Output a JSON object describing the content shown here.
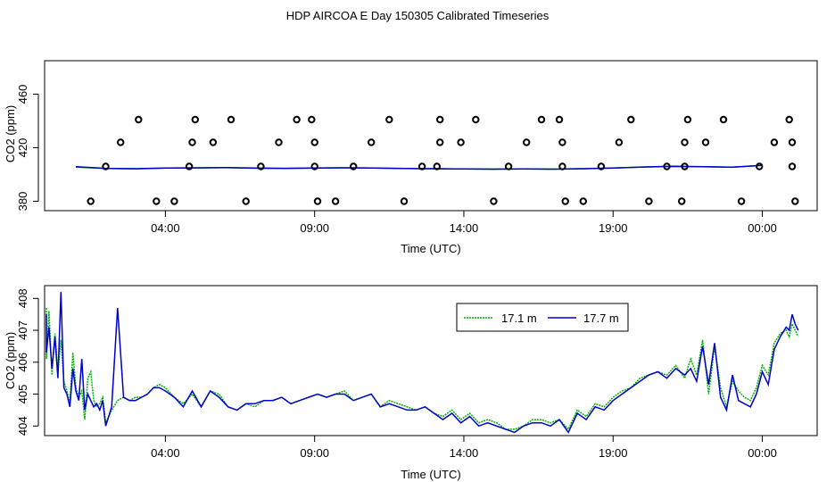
{
  "title": "HDP AIRCOA E  Day 150305  Calibrated Timeseries",
  "colors": {
    "green": "#00b000",
    "blue": "#0000cc",
    "axis": "#000000"
  },
  "chart_data": [
    {
      "type": "line",
      "panel": "top",
      "title": "",
      "xlabel": "Time (UTC)",
      "ylabel": "CO2 (ppm)",
      "xlim": [
        0,
        24
      ],
      "ylim": [
        373,
        485
      ],
      "xticks": [
        3,
        8,
        13,
        18,
        23
      ],
      "xtick_labels": [
        "04:00",
        "09:00",
        "14:00",
        "19:00",
        "00:00"
      ],
      "yticks": [
        380,
        420,
        460
      ],
      "ytick_labels": [
        "380",
        "420",
        "460"
      ],
      "series": [
        {
          "name": "17.1 m",
          "color": "#00b000",
          "x": [
            0,
            1,
            2,
            3,
            4,
            5,
            6,
            7,
            8,
            9,
            10,
            11,
            12,
            13,
            14,
            15,
            16,
            17,
            18,
            19,
            20,
            21,
            22,
            23
          ],
          "values": [
            405.5,
            404.5,
            404.2,
            404.8,
            404.9,
            405.1,
            404.7,
            404.6,
            404.9,
            405,
            404.8,
            404.5,
            404.3,
            404.1,
            404,
            404.1,
            404,
            404.3,
            404.8,
            405.6,
            406,
            405.8,
            405.4,
            406.8
          ]
        },
        {
          "name": "17.7 m",
          "color": "#0000cc",
          "x": [
            0,
            1,
            2,
            3,
            4,
            5,
            6,
            7,
            8,
            9,
            10,
            11,
            12,
            13,
            14,
            15,
            16,
            17,
            18,
            19,
            20,
            21,
            22,
            23
          ],
          "values": [
            405.8,
            404.6,
            404.3,
            404.9,
            405,
            405.2,
            404.8,
            404.6,
            404.9,
            405,
            404.8,
            404.5,
            404.3,
            404.1,
            404,
            404.1,
            404,
            404.3,
            404.8,
            405.6,
            406.1,
            405.9,
            405.5,
            406.9
          ]
        }
      ],
      "calibration_points": [
        [
          0.5,
          380
        ],
        [
          1.0,
          406
        ],
        [
          1.5,
          424
        ],
        [
          2.1,
          441
        ],
        [
          2.7,
          380
        ],
        [
          3.3,
          380
        ],
        [
          3.8,
          406
        ],
        [
          3.9,
          424
        ],
        [
          4.0,
          441
        ],
        [
          4.6,
          424
        ],
        [
          5.2,
          441
        ],
        [
          5.7,
          380
        ],
        [
          6.2,
          406
        ],
        [
          6.8,
          424
        ],
        [
          7.4,
          441
        ],
        [
          7.9,
          441
        ],
        [
          8.0,
          424
        ],
        [
          8.0,
          406
        ],
        [
          8.1,
          380
        ],
        [
          8.7,
          380
        ],
        [
          9.3,
          406
        ],
        [
          9.9,
          424
        ],
        [
          10.5,
          441
        ],
        [
          11.0,
          380
        ],
        [
          11.6,
          406
        ],
        [
          12.1,
          406
        ],
        [
          12.2,
          424
        ],
        [
          12.2,
          441
        ],
        [
          12.9,
          424
        ],
        [
          13.4,
          441
        ],
        [
          14.0,
          380
        ],
        [
          14.5,
          406
        ],
        [
          15.1,
          424
        ],
        [
          15.6,
          441
        ],
        [
          16.2,
          441
        ],
        [
          16.3,
          424
        ],
        [
          16.3,
          406
        ],
        [
          16.4,
          380
        ],
        [
          17.0,
          380
        ],
        [
          17.6,
          406
        ],
        [
          18.2,
          424
        ],
        [
          18.6,
          441
        ],
        [
          19.2,
          380
        ],
        [
          19.8,
          406
        ],
        [
          20.3,
          380
        ],
        [
          20.4,
          406
        ],
        [
          20.4,
          424
        ],
        [
          20.5,
          441
        ],
        [
          21.1,
          424
        ],
        [
          21.7,
          441
        ],
        [
          22.3,
          380
        ],
        [
          22.9,
          406
        ],
        [
          23.4,
          424
        ],
        [
          23.9,
          441
        ],
        [
          24.0,
          424
        ],
        [
          24.0,
          406
        ],
        [
          24.1,
          380
        ]
      ]
    },
    {
      "type": "line",
      "panel": "bottom",
      "title": "",
      "xlabel": "Time (UTC)",
      "ylabel": "CO2 (ppm)",
      "xlim": [
        0,
        24
      ],
      "ylim": [
        403.7,
        408.4
      ],
      "xticks": [
        3,
        8,
        13,
        18,
        23
      ],
      "xtick_labels": [
        "04:00",
        "09:00",
        "14:00",
        "19:00",
        "00:00"
      ],
      "yticks": [
        404,
        405,
        406,
        407,
        408
      ],
      "ytick_labels": [
        "404",
        "405",
        "406",
        "407",
        "408"
      ],
      "legend": {
        "position": "top-right",
        "entries": [
          "17.1 m",
          "17.7 m"
        ]
      },
      "series": [
        {
          "name": "17.1 m",
          "color": "#00b000",
          "dash": "2,1",
          "x": [
            -1.2,
            -1.1,
            -1.0,
            -0.9,
            -0.8,
            -0.7,
            -0.6,
            -0.5,
            -0.4,
            -0.3,
            -0.2,
            -0.1,
            0.0,
            0.1,
            0.2,
            0.3,
            0.4,
            0.5,
            0.6,
            0.7,
            0.8,
            0.9,
            1.0,
            1.2,
            1.4,
            1.6,
            1.8,
            2.0,
            2.2,
            2.4,
            2.6,
            2.8,
            3.0,
            3.3,
            3.6,
            3.9,
            4.2,
            4.5,
            4.8,
            5.1,
            5.4,
            5.7,
            6.0,
            6.3,
            6.6,
            6.9,
            7.2,
            7.5,
            7.8,
            8.1,
            8.4,
            8.7,
            9.0,
            9.3,
            9.6,
            9.9,
            10.2,
            10.5,
            10.8,
            11.1,
            11.4,
            11.7,
            12.0,
            12.3,
            12.6,
            12.9,
            13.2,
            13.5,
            13.8,
            14.1,
            14.4,
            14.7,
            15.0,
            15.3,
            15.6,
            15.9,
            16.2,
            16.5,
            16.8,
            17.1,
            17.4,
            17.7,
            18.0,
            18.3,
            18.6,
            18.9,
            19.2,
            19.5,
            19.8,
            20.1,
            20.4,
            20.6,
            20.8,
            21.0,
            21.2,
            21.4,
            21.6,
            21.8,
            22.0,
            22.2,
            22.4,
            22.6,
            22.8,
            23.0,
            23.2,
            23.4,
            23.6,
            23.8,
            23.9,
            24.0,
            24.1,
            24.2
          ],
          "values": [
            407.7,
            407.0,
            406.1,
            407.6,
            405.6,
            406.9,
            405.7,
            406.7,
            405.4,
            405.1,
            404.7,
            406.3,
            405.2,
            404.9,
            405.1,
            404.2,
            405.5,
            405.7,
            404.8,
            404.6,
            404.7,
            404.9,
            404.1,
            404.5,
            404.8,
            404.9,
            404.8,
            404.9,
            404.9,
            405.0,
            405.2,
            405.3,
            405.2,
            404.9,
            404.7,
            405.0,
            404.6,
            405.1,
            405.0,
            404.6,
            404.5,
            404.7,
            404.6,
            404.8,
            404.8,
            404.9,
            404.7,
            404.8,
            404.9,
            405.0,
            404.9,
            405.0,
            405.1,
            404.8,
            404.9,
            405.0,
            404.6,
            404.8,
            404.7,
            404.6,
            404.5,
            404.6,
            404.4,
            404.3,
            404.5,
            404.2,
            404.4,
            404.1,
            404.2,
            404.1,
            403.9,
            403.9,
            404.0,
            404.2,
            404.2,
            404.1,
            404.2,
            403.9,
            404.5,
            404.3,
            404.7,
            404.6,
            404.9,
            405.1,
            405.2,
            405.5,
            405.6,
            405.7,
            405.6,
            405.9,
            405.5,
            406.1,
            405.6,
            406.7,
            405.0,
            406.5,
            405.2,
            404.6,
            405.4,
            405.1,
            404.9,
            404.8,
            405.2,
            405.9,
            405.6,
            406.6,
            406.9,
            407.0,
            406.8,
            407.2,
            407.0,
            406.8
          ]
        },
        {
          "name": "17.7 m",
          "color": "#0000cc",
          "x": [
            -1.2,
            -1.1,
            -1.0,
            -0.9,
            -0.8,
            -0.7,
            -0.6,
            -0.5,
            -0.4,
            -0.3,
            -0.2,
            -0.1,
            0.0,
            0.1,
            0.2,
            0.3,
            0.4,
            0.5,
            0.6,
            0.7,
            0.8,
            0.9,
            1.0,
            1.2,
            1.4,
            1.6,
            1.8,
            2.0,
            2.2,
            2.4,
            2.6,
            2.8,
            3.0,
            3.3,
            3.6,
            3.9,
            4.2,
            4.5,
            4.8,
            5.1,
            5.4,
            5.7,
            6.0,
            6.3,
            6.6,
            6.9,
            7.2,
            7.5,
            7.8,
            8.1,
            8.4,
            8.7,
            9.0,
            9.3,
            9.6,
            9.9,
            10.2,
            10.5,
            10.8,
            11.1,
            11.4,
            11.7,
            12.0,
            12.3,
            12.6,
            12.9,
            13.2,
            13.5,
            13.8,
            14.1,
            14.4,
            14.7,
            15.0,
            15.3,
            15.6,
            15.9,
            16.2,
            16.5,
            16.8,
            17.1,
            17.4,
            17.7,
            18.0,
            18.3,
            18.6,
            18.9,
            19.2,
            19.5,
            19.8,
            20.1,
            20.4,
            20.6,
            20.8,
            21.0,
            21.2,
            21.4,
            21.6,
            21.8,
            22.0,
            22.2,
            22.4,
            22.6,
            22.8,
            23.0,
            23.2,
            23.4,
            23.6,
            23.8,
            23.9,
            24.0,
            24.1,
            24.2
          ],
          "values": [
            407.5,
            406.8,
            406.3,
            407.1,
            405.8,
            406.8,
            405.5,
            408.2,
            405.2,
            405.0,
            404.6,
            405.8,
            405.1,
            404.8,
            406.1,
            404.5,
            405.0,
            404.8,
            404.6,
            404.7,
            404.5,
            404.8,
            404.0,
            404.6,
            407.7,
            404.9,
            404.8,
            404.8,
            404.9,
            405.0,
            405.2,
            405.2,
            405.1,
            404.9,
            404.6,
            405.1,
            404.6,
            405.1,
            404.9,
            404.6,
            404.5,
            404.7,
            404.7,
            404.8,
            404.8,
            404.9,
            404.7,
            404.8,
            404.9,
            405.0,
            404.9,
            405.0,
            405.0,
            404.8,
            404.9,
            405.0,
            404.6,
            404.7,
            404.6,
            404.5,
            404.5,
            404.6,
            404.4,
            404.2,
            404.4,
            404.1,
            404.3,
            404.0,
            404.1,
            404.0,
            403.9,
            403.8,
            404.0,
            404.1,
            404.1,
            404.0,
            404.2,
            403.8,
            404.4,
            404.2,
            404.6,
            404.5,
            404.8,
            405.0,
            405.2,
            405.4,
            405.6,
            405.7,
            405.5,
            405.8,
            405.6,
            405.8,
            405.4,
            406.5,
            405.3,
            406.6,
            404.9,
            404.5,
            405.6,
            404.8,
            404.7,
            404.6,
            405.0,
            405.7,
            405.3,
            406.4,
            406.8,
            407.1,
            407.0,
            407.5,
            407.2,
            407.0
          ]
        }
      ]
    }
  ]
}
